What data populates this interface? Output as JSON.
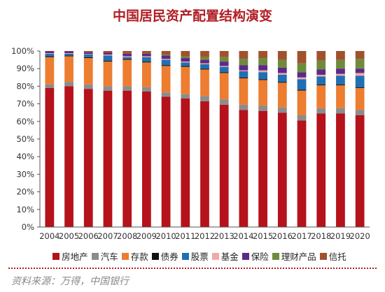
{
  "chart_data": {
    "type": "bar",
    "stacked": true,
    "title": "中国居民资产配置结构演变",
    "categories": [
      "2004",
      "2005",
      "2006",
      "2007",
      "2008",
      "2009",
      "2010",
      "2011",
      "2012",
      "2013",
      "2014",
      "2015",
      "2016",
      "2017",
      "2018",
      "2019",
      "2020"
    ],
    "ylim": [
      0,
      100
    ],
    "y_unit": "%",
    "y_ticks": [
      "0%",
      "10%",
      "20%",
      "30%",
      "40%",
      "50%",
      "60%",
      "70%",
      "80%",
      "90%",
      "100%"
    ],
    "grid": false,
    "legend_position": "bottom",
    "series": [
      {
        "name": "房地产",
        "color": "#b5121b",
        "values": [
          79,
          80,
          78.5,
          77.5,
          77.5,
          77,
          74,
          73,
          71.5,
          69.5,
          66.5,
          66,
          65,
          60.5,
          64.5,
          64.5,
          63.5
        ]
      },
      {
        "name": "汽车",
        "color": "#8c8c8c",
        "values": [
          2,
          2.5,
          2.5,
          2.5,
          2.5,
          2.5,
          2.5,
          2.5,
          3,
          3,
          3,
          3,
          3,
          3,
          3,
          3,
          3
        ]
      },
      {
        "name": "存款",
        "color": "#ed7d31",
        "values": [
          15.5,
          14.5,
          15,
          14,
          15,
          14,
          15,
          15.5,
          15,
          15,
          15,
          14.5,
          14,
          14,
          13,
          13,
          12.5
        ]
      },
      {
        "name": "债券",
        "color": "#111111",
        "values": [
          0.5,
          0.5,
          0.5,
          0.5,
          0.5,
          0.5,
          0.5,
          0.5,
          0.5,
          0.5,
          0.5,
          0.5,
          0.5,
          0.5,
          0.5,
          0.5,
          0.5
        ]
      },
      {
        "name": "股票",
        "color": "#1f6fb5",
        "values": [
          1.5,
          1,
          1.5,
          3,
          1,
          2.5,
          3,
          2,
          2.5,
          3,
          3.5,
          4,
          4,
          6,
          4.5,
          5,
          6.5
        ]
      },
      {
        "name": "基金",
        "color": "#f4a7a6",
        "values": [
          0.3,
          0.3,
          0.3,
          0.5,
          0.5,
          0.5,
          0.5,
          0.5,
          0.5,
          0.5,
          0.5,
          1,
          1,
          1,
          1,
          1,
          1.5
        ]
      },
      {
        "name": "保险",
        "color": "#5b2a86",
        "values": [
          1,
          1,
          1,
          1,
          1.5,
          1.5,
          2,
          2,
          2,
          2.5,
          3,
          3,
          3,
          3,
          3,
          3,
          2.5
        ]
      },
      {
        "name": "理财产品",
        "color": "#6e8b3d",
        "values": [
          0,
          0,
          0,
          0,
          0,
          0,
          0.5,
          1,
          1.5,
          2.5,
          3.5,
          4,
          4.5,
          5,
          5,
          5,
          5.5
        ]
      },
      {
        "name": "信托",
        "color": "#a0522d",
        "values": [
          0.2,
          0.2,
          0.7,
          1,
          1.5,
          1.5,
          2,
          3,
          3.5,
          3.5,
          4.5,
          4,
          5,
          7,
          5.5,
          5,
          4.5
        ]
      }
    ]
  },
  "source_note": "资料来源：万得，中国银行"
}
